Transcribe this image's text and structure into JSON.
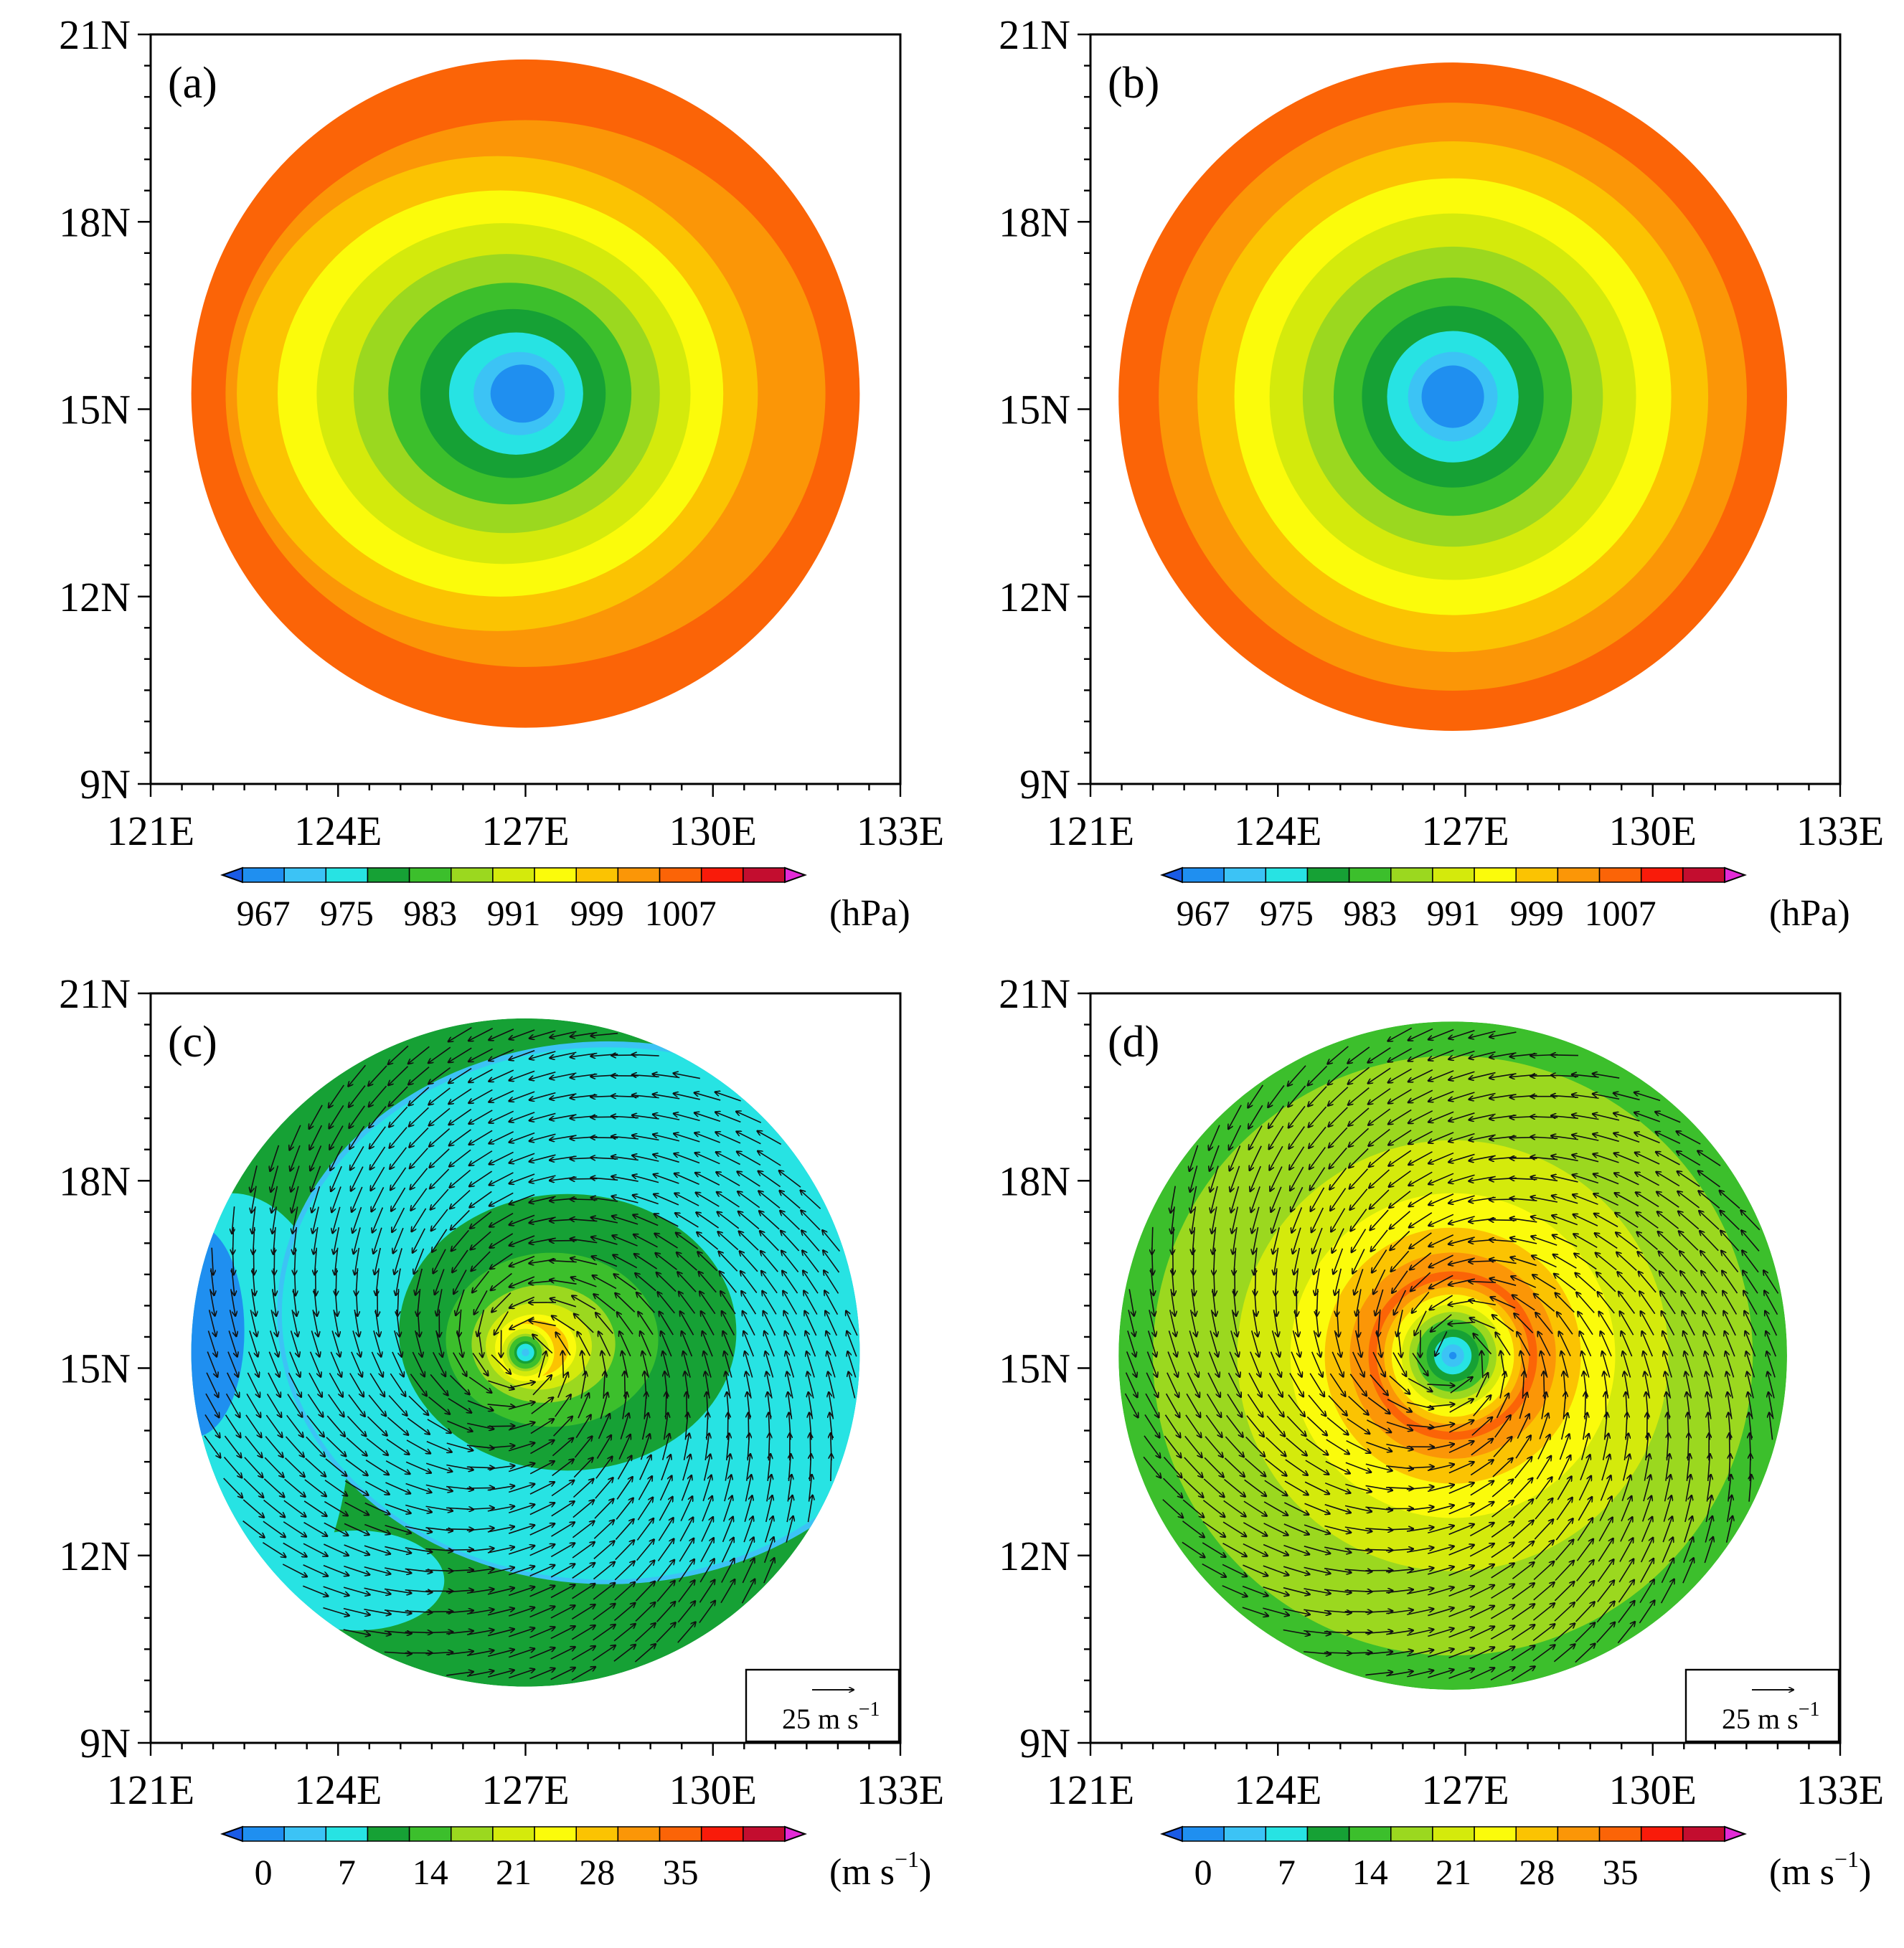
{
  "chart_data": [
    {
      "type": "heatmap",
      "panel_label": "(a)",
      "field": "pressure",
      "center": [
        127.0,
        15.25
      ],
      "min_value": 967,
      "outer_value": 1007,
      "core_radius_deg": 0.5,
      "asymmetric": true,
      "vectors": false,
      "colorbar": {
        "labels": [
          "967",
          "975",
          "983",
          "991",
          "999",
          "1007"
        ],
        "unit": "(hPa)",
        "first": 967,
        "step": 8
      },
      "xticks": [
        "121E",
        "124E",
        "127E",
        "130E",
        "133E"
      ],
      "yticks": [
        "9N",
        "12N",
        "15N",
        "18N",
        "21N"
      ],
      "xlim": [
        121,
        133
      ],
      "ylim": [
        9,
        21
      ]
    },
    {
      "type": "heatmap",
      "panel_label": "(b)",
      "field": "pressure",
      "center": [
        126.8,
        15.2
      ],
      "min_value": 967,
      "outer_value": 1007,
      "core_radius_deg": 0.5,
      "asymmetric": false,
      "vectors": false,
      "colorbar": {
        "labels": [
          "967",
          "975",
          "983",
          "991",
          "999",
          "1007"
        ],
        "unit": "(hPa)",
        "first": 967,
        "step": 8
      },
      "xticks": [
        "121E",
        "124E",
        "127E",
        "130E",
        "133E"
      ],
      "yticks": [
        "9N",
        "12N",
        "15N",
        "18N",
        "21N"
      ],
      "xlim": [
        121,
        133
      ],
      "ylim": [
        9,
        21
      ]
    },
    {
      "type": "heatmap",
      "panel_label": "(c)",
      "field": "wind speed",
      "center": [
        127.0,
        15.25
      ],
      "peak_value": 30,
      "peak_radius_deg": 0.5,
      "asymmetric": true,
      "vectors": true,
      "reference_vector": "25 m s",
      "colorbar": {
        "labels": [
          "0",
          "7",
          "14",
          "21",
          "28",
          "35"
        ],
        "unit": "(m s",
        "unit_exp": "−1",
        "unit_close": ")",
        "first": 0,
        "step": 7
      },
      "xticks": [
        "121E",
        "124E",
        "127E",
        "130E",
        "133E"
      ],
      "yticks": [
        "9N",
        "12N",
        "15N",
        "18N",
        "21N"
      ],
      "xlim": [
        121,
        133
      ],
      "ylim": [
        9,
        21
      ]
    },
    {
      "type": "heatmap",
      "panel_label": "(d)",
      "field": "wind speed",
      "center": [
        126.8,
        15.2
      ],
      "peak_value": 36,
      "peak_radius_deg": 1.3,
      "asymmetric": false,
      "vectors": true,
      "reference_vector": "25 m s",
      "colorbar": {
        "labels": [
          "0",
          "7",
          "14",
          "21",
          "28",
          "35"
        ],
        "unit": "(m s",
        "unit_exp": "−1",
        "unit_close": ")",
        "first": 0,
        "step": 7
      },
      "xticks": [
        "121E",
        "124E",
        "127E",
        "130E",
        "133E"
      ],
      "yticks": [
        "9N",
        "12N",
        "15N",
        "18N",
        "21N"
      ],
      "xlim": [
        121,
        133
      ],
      "ylim": [
        9,
        21
      ]
    }
  ],
  "palette": [
    "#1a5be6",
    "#1f8ff0",
    "#3cc3f5",
    "#27e3e3",
    "#16a135",
    "#3cbf2c",
    "#9bd81f",
    "#d4ea0c",
    "#fbfb0b",
    "#fbc302",
    "#fb9607",
    "#fb6407",
    "#f91b0a",
    "#c30d2f",
    "#e32bd6"
  ]
}
